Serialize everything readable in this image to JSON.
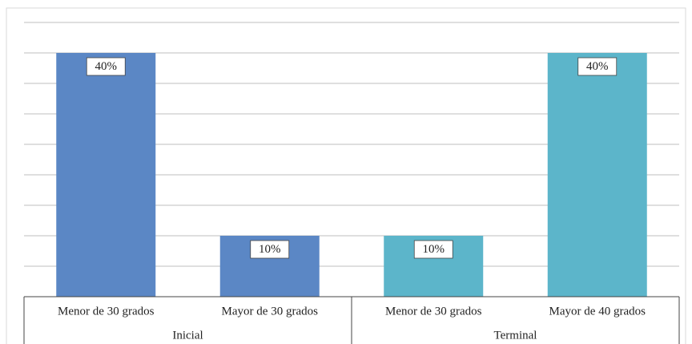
{
  "chart_data": {
    "type": "bar",
    "categories": [
      "Menor de 30 grados",
      "Mayor de 30 grados",
      "Menor de 30 grados",
      "Mayor de 40 grados"
    ],
    "groups": [
      {
        "name": "Inicial",
        "size": 2
      },
      {
        "name": "Terminal",
        "size": 2
      }
    ],
    "values": [
      40,
      10,
      10,
      40
    ],
    "value_labels": [
      "40%",
      "10%",
      "10%",
      "40%"
    ],
    "colors": [
      "#5b87c5",
      "#5b87c5",
      "#5cb5ca",
      "#5cb5ca"
    ],
    "ylim": [
      0,
      45
    ],
    "yticks": [
      0,
      5,
      10,
      15,
      20,
      25,
      30,
      35,
      40,
      45
    ],
    "grid": true
  }
}
